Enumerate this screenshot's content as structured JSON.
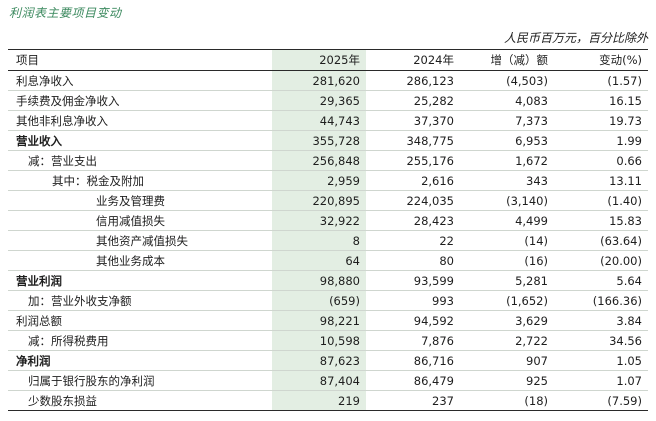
{
  "title": "利润表主要项目变动",
  "unit_note": "人民币百万元，百分比除外",
  "header": {
    "item": "项目",
    "y2025": "2025年",
    "y2024": "2024年",
    "change": "增（减）额",
    "pct": "变动(%)"
  },
  "rows": [
    {
      "label": "利息净收入",
      "v2025": "281,620",
      "v2024": "286,123",
      "change": "(4,503)",
      "pct": "(1.57)",
      "indent": 0,
      "bold": false
    },
    {
      "label": "手续费及佣金净收入",
      "v2025": "29,365",
      "v2024": "25,282",
      "change": "4,083",
      "pct": "16.15",
      "indent": 0,
      "bold": false
    },
    {
      "label": "其他非利息净收入",
      "v2025": "44,743",
      "v2024": "37,370",
      "change": "7,373",
      "pct": "19.73",
      "indent": 0,
      "bold": false
    },
    {
      "label": "营业收入",
      "v2025": "355,728",
      "v2024": "348,775",
      "change": "6,953",
      "pct": "1.99",
      "indent": 0,
      "bold": true
    },
    {
      "label": "减：营业支出",
      "v2025": "256,848",
      "v2024": "255,176",
      "change": "1,672",
      "pct": "0.66",
      "indent": 1,
      "bold": false
    },
    {
      "label": "其中：税金及附加",
      "v2025": "2,959",
      "v2024": "2,616",
      "change": "343",
      "pct": "13.11",
      "indent": 2,
      "bold": false
    },
    {
      "label": "业务及管理费",
      "v2025": "220,895",
      "v2024": "224,035",
      "change": "(3,140)",
      "pct": "(1.40)",
      "indent": 3,
      "bold": false
    },
    {
      "label": "信用减值损失",
      "v2025": "32,922",
      "v2024": "28,423",
      "change": "4,499",
      "pct": "15.83",
      "indent": 3,
      "bold": false
    },
    {
      "label": "其他资产减值损失",
      "v2025": "8",
      "v2024": "22",
      "change": "(14)",
      "pct": "(63.64)",
      "indent": 3,
      "bold": false
    },
    {
      "label": "其他业务成本",
      "v2025": "64",
      "v2024": "80",
      "change": "(16)",
      "pct": "(20.00)",
      "indent": 3,
      "bold": false
    },
    {
      "label": "营业利润",
      "v2025": "98,880",
      "v2024": "93,599",
      "change": "5,281",
      "pct": "5.64",
      "indent": 0,
      "bold": true
    },
    {
      "label": "加：营业外收支净额",
      "v2025": "(659)",
      "v2024": "993",
      "change": "(1,652)",
      "pct": "(166.36)",
      "indent": 1,
      "bold": false
    },
    {
      "label": "利润总额",
      "v2025": "98,221",
      "v2024": "94,592",
      "change": "3,629",
      "pct": "3.84",
      "indent": 0,
      "bold": false
    },
    {
      "label": "减：所得税费用",
      "v2025": "10,598",
      "v2024": "7,876",
      "change": "2,722",
      "pct": "34.56",
      "indent": 1,
      "bold": false
    },
    {
      "label": "净利润",
      "v2025": "87,623",
      "v2024": "86,716",
      "change": "907",
      "pct": "1.05",
      "indent": 0,
      "bold": true
    },
    {
      "label": "归属于银行股东的净利润",
      "v2025": "87,404",
      "v2024": "86,479",
      "change": "925",
      "pct": "1.07",
      "indent": 1,
      "bold": false
    },
    {
      "label": "少数股东损益",
      "v2025": "219",
      "v2024": "237",
      "change": "(18)",
      "pct": "(7.59)",
      "indent": 1,
      "bold": false
    }
  ]
}
